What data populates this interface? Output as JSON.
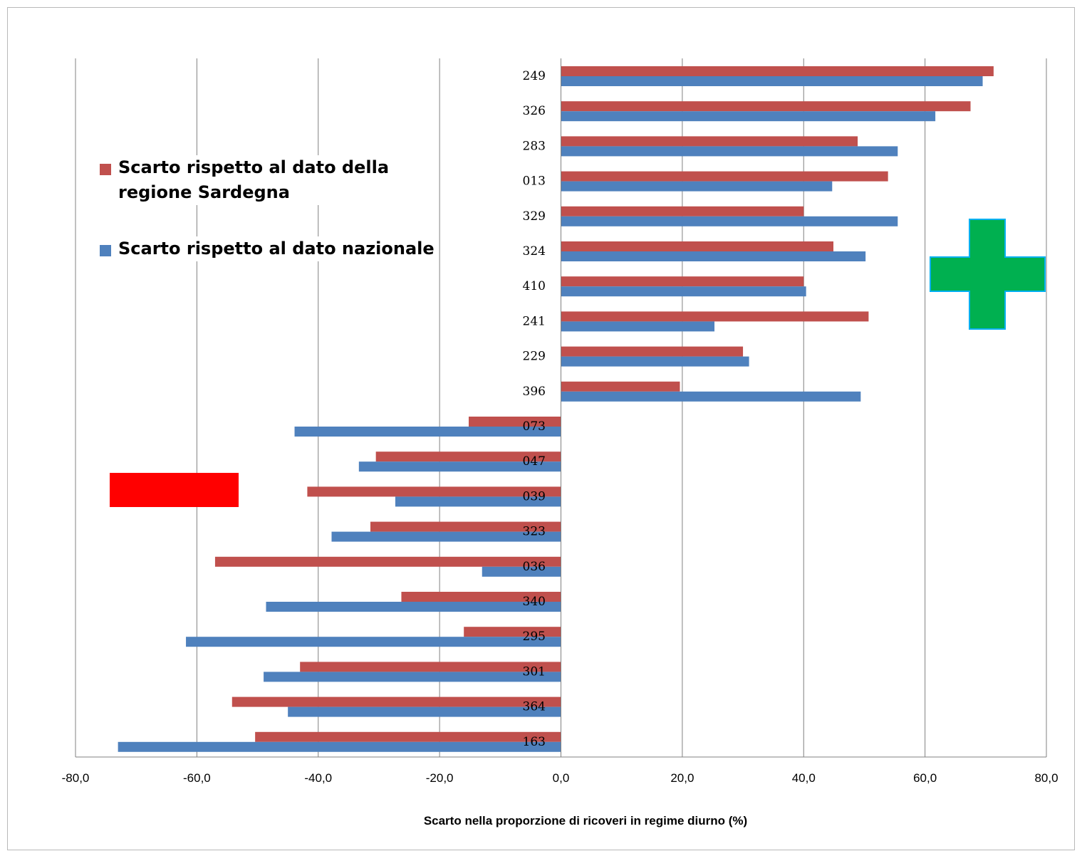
{
  "chart_data": {
    "type": "bar",
    "orientation": "horizontal",
    "categories": [
      "249",
      "326",
      "283",
      "013",
      "329",
      "324",
      "410",
      "241",
      "229",
      "396",
      "073",
      "047",
      "039",
      "323",
      "036",
      "340",
      "295",
      "301",
      "364",
      "163"
    ],
    "series": [
      {
        "name": "Scarto rispetto al dato della regione Sardegna",
        "color": "#c0504d",
        "values": [
          71.3,
          67.5,
          48.9,
          53.9,
          40.0,
          44.9,
          40.0,
          50.7,
          30.0,
          19.6,
          -15.2,
          -30.5,
          -41.8,
          -31.4,
          -57.0,
          -26.3,
          -16.0,
          -43.0,
          -54.2,
          -50.4
        ]
      },
      {
        "name": "Scarto rispetto al dato nazionale",
        "color": "#4f81bd",
        "values": [
          69.5,
          61.7,
          55.5,
          44.7,
          55.5,
          50.2,
          40.4,
          25.3,
          31.0,
          49.4,
          -43.9,
          -33.3,
          -27.3,
          -37.8,
          -13.0,
          -48.6,
          -61.8,
          -49.0,
          -45.0,
          -73.0
        ]
      }
    ],
    "xlabel": "Scarto nella proporzione di ricoveri in regime diurno (%)",
    "xlim": [
      -80,
      80
    ],
    "ticks": [
      "-80,0",
      "-60,0",
      "-40,0",
      "-20,0",
      "0,0",
      "20,0",
      "40,0",
      "60,0",
      "80,0"
    ],
    "grid": true,
    "legend_position": "left"
  },
  "markers": {
    "plus_color": "#00b050",
    "plus_outline": "#00b0f0",
    "minus_color": "#ff0000"
  }
}
